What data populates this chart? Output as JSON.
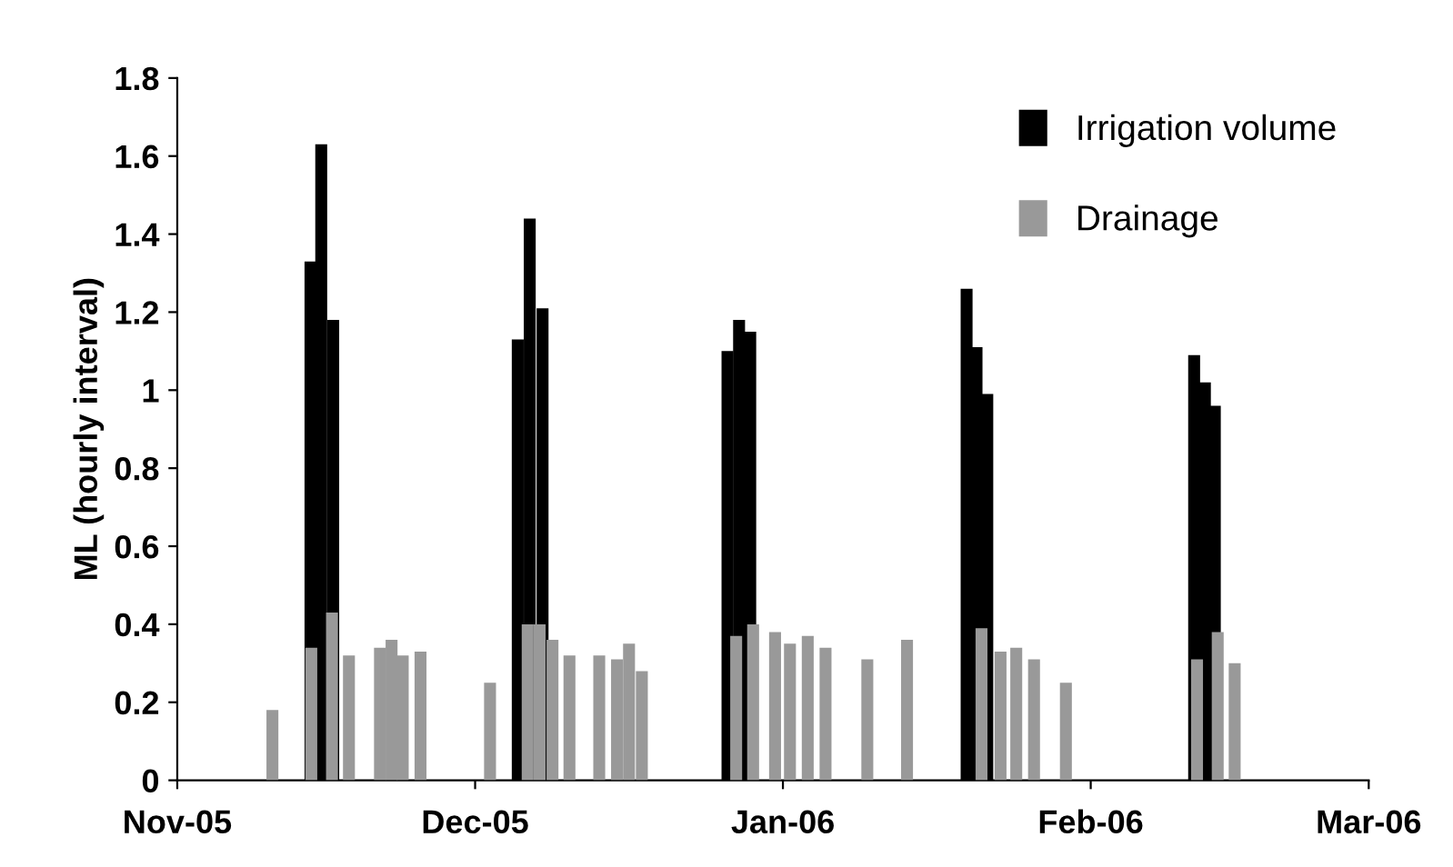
{
  "chart_data": {
    "type": "bar",
    "ylabel": "ML (hourly interval)",
    "xlim": [
      "2005-11-01",
      "2006-03-01"
    ],
    "xticks": [
      {
        "value": "2005-11-01",
        "label": "Nov-05"
      },
      {
        "value": "2005-12-01",
        "label": "Dec-05"
      },
      {
        "value": "2006-01-01",
        "label": "Jan-06"
      },
      {
        "value": "2006-02-01",
        "label": "Feb-06"
      },
      {
        "value": "2006-03-01",
        "label": "Mar-06"
      }
    ],
    "ylim": [
      0,
      1.8
    ],
    "yticks": [
      0,
      0.2,
      0.4,
      0.6,
      0.8,
      1,
      1.2,
      1.4,
      1.6,
      1.8
    ],
    "grid": false,
    "legend": "top right",
    "series": [
      {
        "name": "Irrigation volume",
        "color": "#000000",
        "x": [
          "2005-11-14T10:00",
          "2005-11-15T12:00",
          "2005-11-16T17:00",
          "2005-12-05T07:00",
          "2005-12-06T12:00",
          "2005-12-07T19:00",
          "2005-12-26T10:00",
          "2005-12-27T14:00",
          "2005-12-28T17:00",
          "2006-01-19T12:00",
          "2006-01-20T12:00",
          "2006-01-21T14:00",
          "2006-02-11T10:00",
          "2006-02-12T12:00",
          "2006-02-13T12:00"
        ],
        "values": [
          1.33,
          1.63,
          1.18,
          1.13,
          1.44,
          1.21,
          1.1,
          1.18,
          1.15,
          1.26,
          1.11,
          0.99,
          1.09,
          1.02,
          0.96
        ]
      },
      {
        "name": "Drainage",
        "color": "#999999",
        "x": [
          "2005-11-10T14:00",
          "2005-11-14T12:00",
          "2005-11-16T14:00",
          "2005-11-18T07:00",
          "2005-11-21T10:00",
          "2005-11-22T14:00",
          "2005-11-23T17:00",
          "2005-11-25T12:00",
          "2005-12-02T12:00",
          "2005-12-06T07:00",
          "2005-12-07T12:00",
          "2005-12-08T19:00",
          "2005-12-10T12:00",
          "2005-12-13T12:00",
          "2005-12-15T07:00",
          "2005-12-16T12:00",
          "2005-12-17T19:00",
          "2005-12-27T07:00",
          "2005-12-29T00:00",
          "2005-12-31T05:00",
          "2006-01-01T17:00",
          "2006-01-03T12:00",
          "2006-01-05T07:00",
          "2006-01-09T12:00",
          "2006-01-13T12:00",
          "2006-01-21T00:00",
          "2006-01-22T22:00",
          "2006-01-24T12:00",
          "2006-01-26T07:00",
          "2006-01-29T12:00",
          "2006-02-11T17:00",
          "2006-02-13T19:00",
          "2006-02-15T12:00"
        ],
        "values": [
          0.18,
          0.34,
          0.43,
          0.32,
          0.34,
          0.36,
          0.32,
          0.33,
          0.25,
          0.4,
          0.4,
          0.36,
          0.32,
          0.32,
          0.31,
          0.35,
          0.28,
          0.37,
          0.4,
          0.38,
          0.35,
          0.37,
          0.34,
          0.31,
          0.36,
          0.39,
          0.33,
          0.34,
          0.31,
          0.25,
          0.31,
          0.38,
          0.3
        ]
      }
    ]
  }
}
